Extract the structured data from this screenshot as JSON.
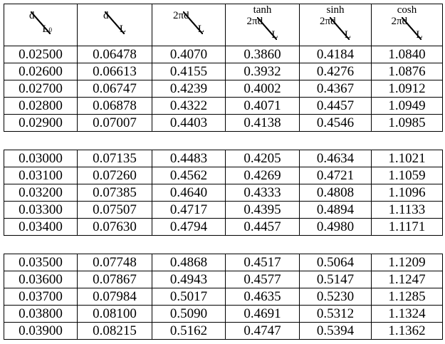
{
  "headers": [
    {
      "fn": "",
      "num": "d",
      "den": "L",
      "sub": "0"
    },
    {
      "fn": "",
      "num": "d",
      "den": "L",
      "sub": ""
    },
    {
      "fn": "",
      "num": "2πd",
      "den": "L",
      "sub": ""
    },
    {
      "fn": "tanh",
      "num": "2πd",
      "den": "L",
      "sub": ""
    },
    {
      "fn": "sinh",
      "num": "2πd",
      "den": "L",
      "sub": ""
    },
    {
      "fn": "cosh",
      "num": "2πd",
      "den": "L",
      "sub": ""
    }
  ],
  "groups": [
    [
      [
        "0.02500",
        "0.06478",
        "0.4070",
        "0.3860",
        "0.4184",
        "1.0840"
      ],
      [
        "0.02600",
        "0.06613",
        "0.4155",
        "0.3932",
        "0.4276",
        "1.0876"
      ],
      [
        "0.02700",
        "0.06747",
        "0.4239",
        "0.4002",
        "0.4367",
        "1.0912"
      ],
      [
        "0.02800",
        "0.06878",
        "0.4322",
        "0.4071",
        "0.4457",
        "1.0949"
      ],
      [
        "0.02900",
        "0.07007",
        "0.4403",
        "0.4138",
        "0.4546",
        "1.0985"
      ]
    ],
    [
      [
        "0.03000",
        "0.07135",
        "0.4483",
        "0.4205",
        "0.4634",
        "1.1021"
      ],
      [
        "0.03100",
        "0.07260",
        "0.4562",
        "0.4269",
        "0.4721",
        "1.1059"
      ],
      [
        "0.03200",
        "0.07385",
        "0.4640",
        "0.4333",
        "0.4808",
        "1.1096"
      ],
      [
        "0.03300",
        "0.07507",
        "0.4717",
        "0.4395",
        "0.4894",
        "1.1133"
      ],
      [
        "0.03400",
        "0.07630",
        "0.4794",
        "0.4457",
        "0.4980",
        "1.1171"
      ]
    ],
    [
      [
        "0.03500",
        "0.07748",
        "0.4868",
        "0.4517",
        "0.5064",
        "1.1209"
      ],
      [
        "0.03600",
        "0.07867",
        "0.4943",
        "0.4577",
        "0.5147",
        "1.1247"
      ],
      [
        "0.03700",
        "0.07984",
        "0.5017",
        "0.4635",
        "0.5230",
        "1.1285"
      ],
      [
        "0.03800",
        "0.08100",
        "0.5090",
        "0.4691",
        "0.5312",
        "1.1324"
      ],
      [
        "0.03900",
        "0.08215",
        "0.5162",
        "0.4747",
        "0.5394",
        "1.1362"
      ]
    ]
  ]
}
